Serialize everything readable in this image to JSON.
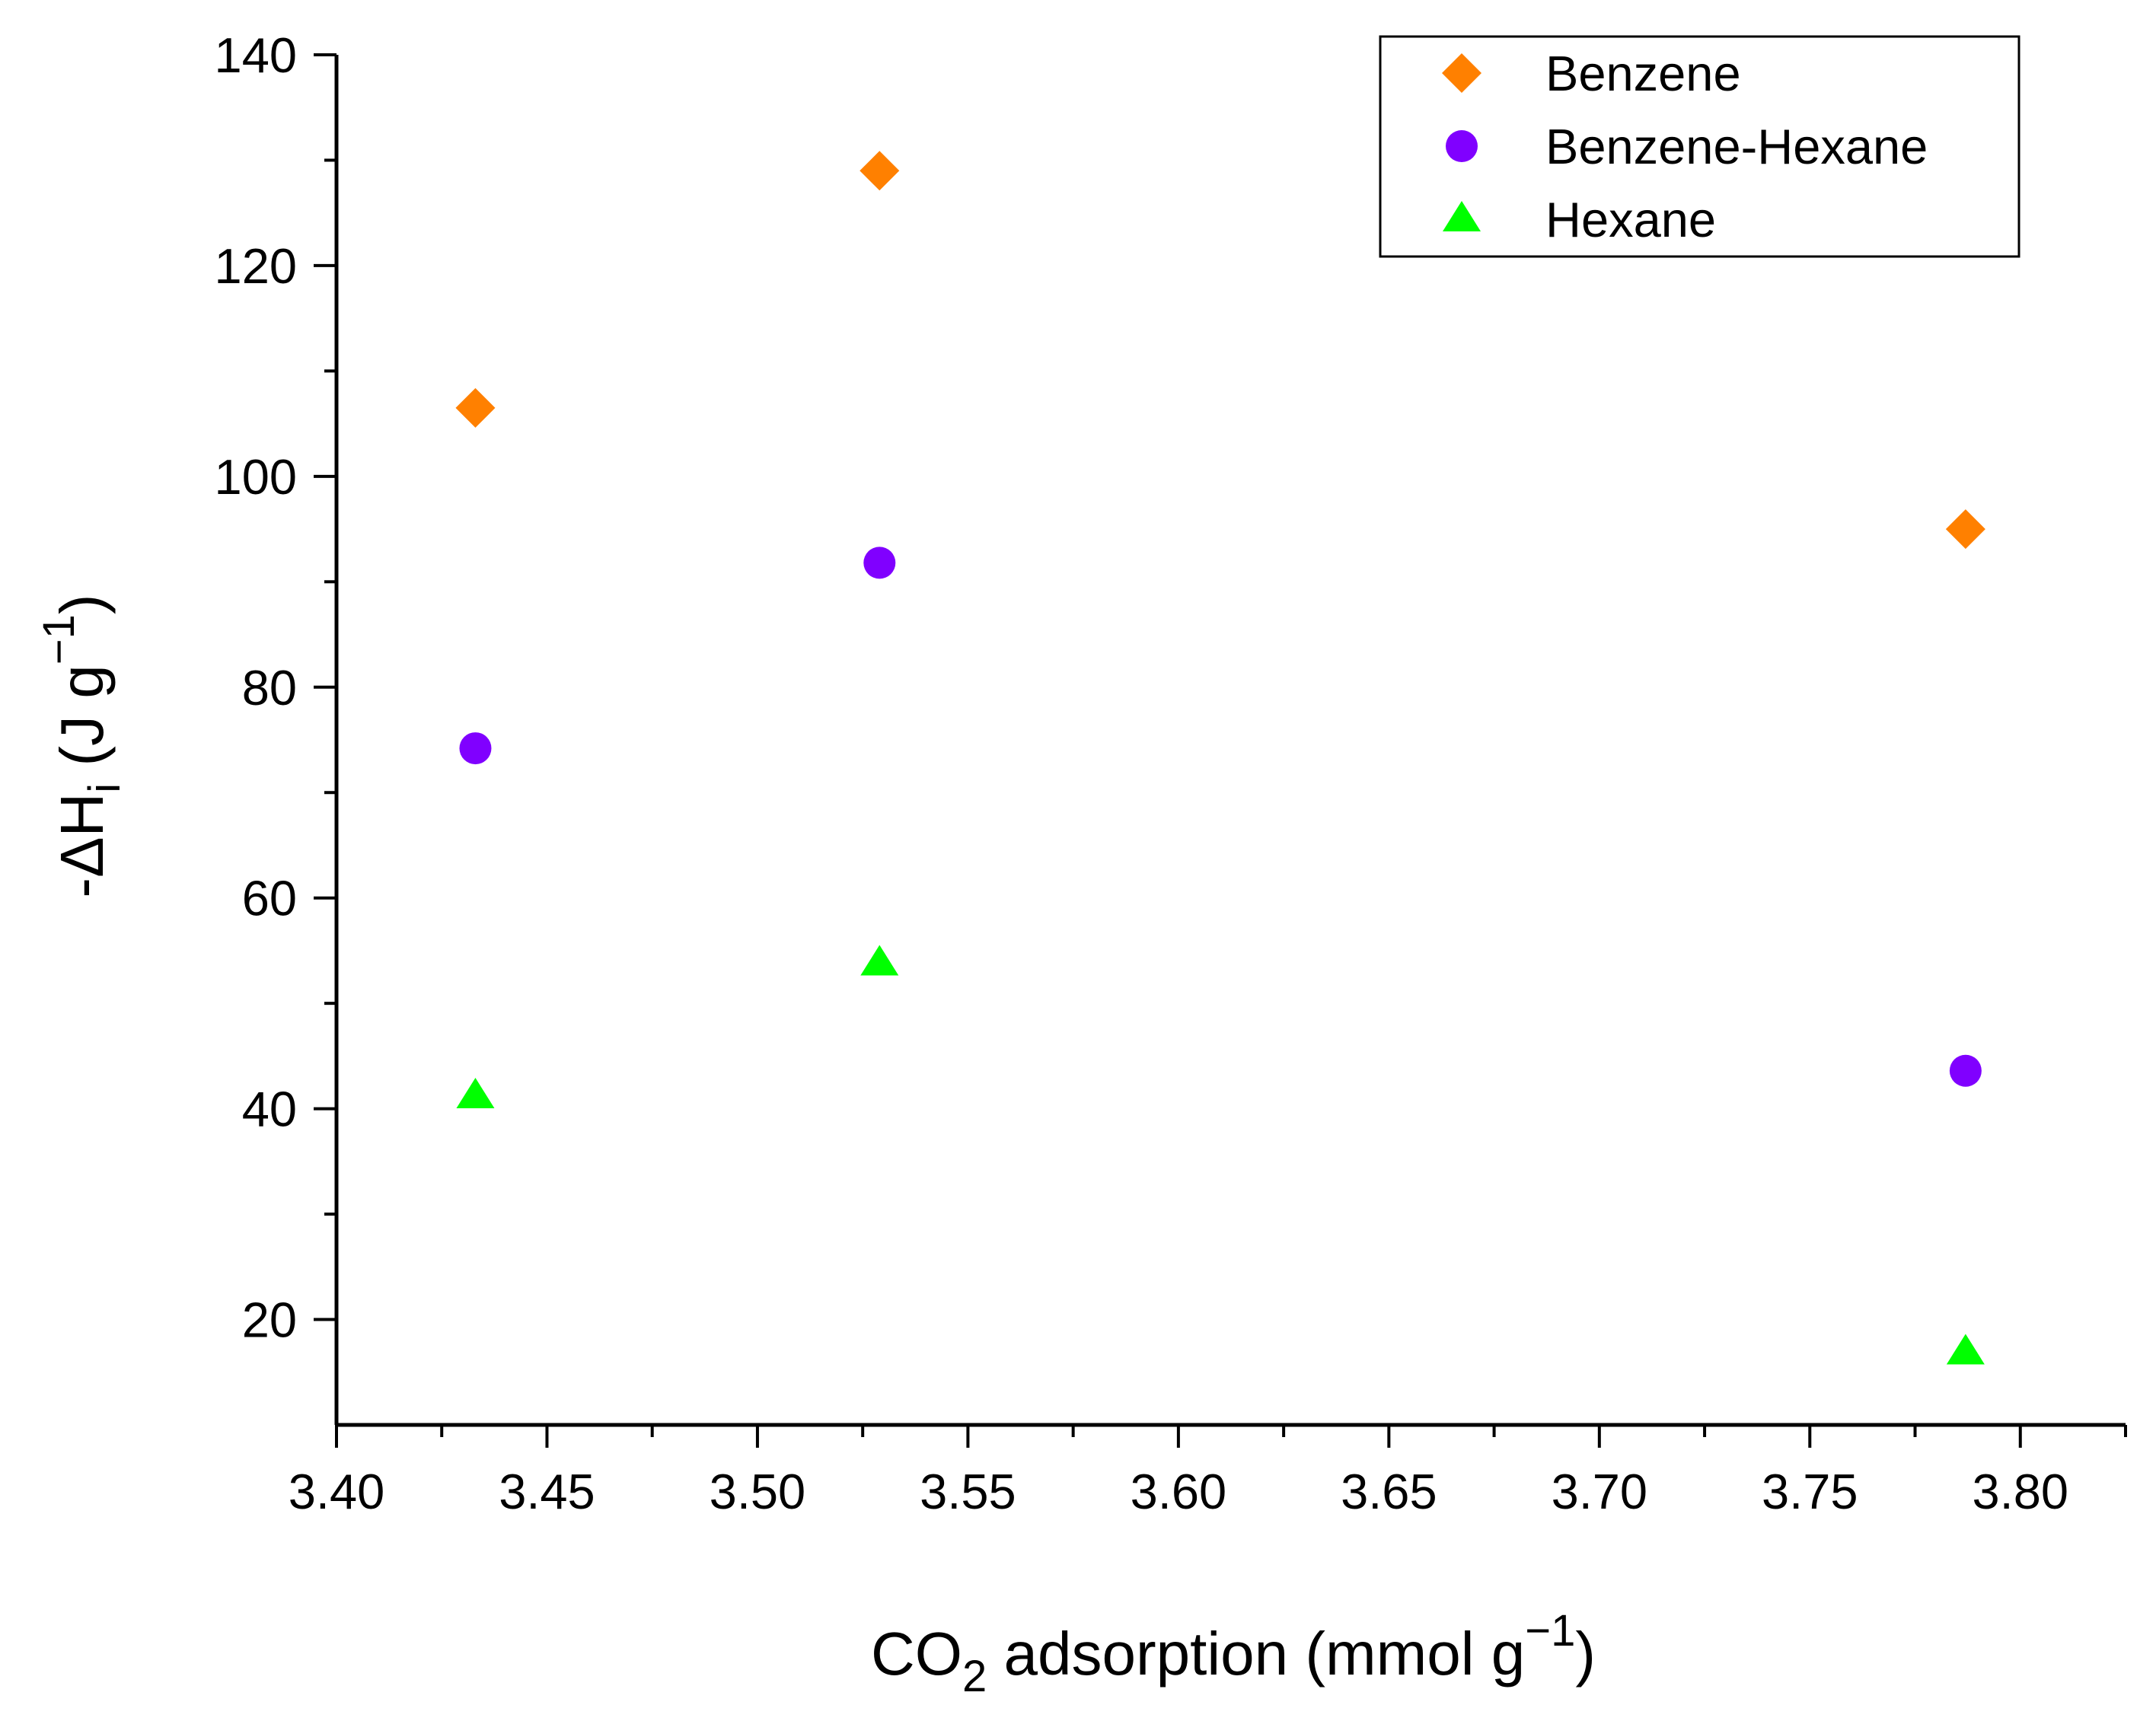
{
  "chart_data": {
    "type": "scatter",
    "xlabel_prefix": "CO",
    "xlabel_sub": "2",
    "xlabel_mid": " adsorption (mmol g",
    "xlabel_sup": "−1",
    "xlabel_suffix": ")",
    "ylabel_prefix": "-ΔH",
    "ylabel_sub": "i",
    "ylabel_mid": " (J g",
    "ylabel_sup": "−1",
    "ylabel_suffix": ")",
    "xlim": [
      3.4,
      3.825
    ],
    "ylim": [
      10,
      140
    ],
    "xticks": [
      3.4,
      3.45,
      3.5,
      3.55,
      3.6,
      3.65,
      3.7,
      3.75,
      3.8
    ],
    "xtick_labels": [
      "3.40",
      "3.45",
      "3.50",
      "3.55",
      "3.60",
      "3.65",
      "3.70",
      "3.75",
      "3.80"
    ],
    "yticks": [
      20,
      40,
      60,
      80,
      100,
      120,
      140
    ],
    "ytick_labels": [
      "20",
      "40",
      "60",
      "80",
      "100",
      "120",
      "140"
    ],
    "grid": false,
    "legend_position": "top-right",
    "series": [
      {
        "name": "Benzene",
        "marker": "diamond",
        "color": "#FF8000",
        "x": [
          3.433,
          3.529,
          3.787
        ],
        "y": [
          106.5,
          129.0,
          95.0
        ]
      },
      {
        "name": "Benzene-Hexane",
        "marker": "circle",
        "color": "#8000FF",
        "x": [
          3.433,
          3.529,
          3.787
        ],
        "y": [
          74.2,
          91.8,
          43.6
        ]
      },
      {
        "name": "Hexane",
        "marker": "triangle",
        "color": "#00FF00",
        "x": [
          3.433,
          3.529,
          3.787
        ],
        "y": [
          41.2,
          53.8,
          16.9
        ]
      }
    ]
  }
}
